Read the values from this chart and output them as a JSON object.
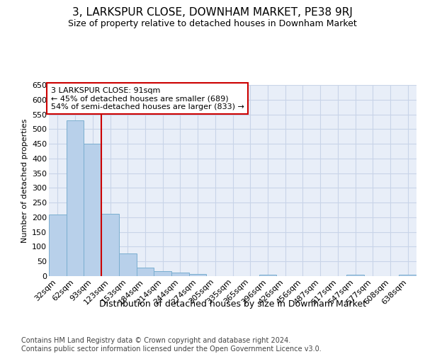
{
  "title": "3, LARKSPUR CLOSE, DOWNHAM MARKET, PE38 9RJ",
  "subtitle": "Size of property relative to detached houses in Downham Market",
  "xlabel": "Distribution of detached houses by size in Downham Market",
  "ylabel": "Number of detached properties",
  "footer_line1": "Contains HM Land Registry data © Crown copyright and database right 2024.",
  "footer_line2": "Contains public sector information licensed under the Open Government Licence v3.0.",
  "categories": [
    "32sqm",
    "62sqm",
    "93sqm",
    "123sqm",
    "153sqm",
    "184sqm",
    "214sqm",
    "244sqm",
    "274sqm",
    "305sqm",
    "335sqm",
    "365sqm",
    "396sqm",
    "426sqm",
    "456sqm",
    "487sqm",
    "517sqm",
    "547sqm",
    "577sqm",
    "608sqm",
    "638sqm"
  ],
  "values": [
    210,
    530,
    450,
    213,
    78,
    28,
    16,
    12,
    7,
    0,
    0,
    0,
    5,
    0,
    0,
    0,
    0,
    5,
    0,
    0,
    5
  ],
  "bar_color": "#b8d0ea",
  "bar_edge_color": "#7aaed0",
  "grid_color": "#c8d4e8",
  "background_color": "#e8eef8",
  "annotation_box_edge_color": "#cc0000",
  "property_line_color": "#cc0000",
  "property_line_x": 2.5,
  "annotation_title": "3 LARKSPUR CLOSE: 91sqm",
  "annotation_line1": "← 45% of detached houses are smaller (689)",
  "annotation_line2": "54% of semi-detached houses are larger (833) →",
  "ylim": [
    0,
    650
  ],
  "yticks": [
    0,
    50,
    100,
    150,
    200,
    250,
    300,
    350,
    400,
    450,
    500,
    550,
    600,
    650
  ],
  "title_fontsize": 11,
  "subtitle_fontsize": 9,
  "ylabel_fontsize": 8,
  "xlabel_fontsize": 9,
  "tick_fontsize": 8,
  "annotation_fontsize": 8,
  "footer_fontsize": 7
}
